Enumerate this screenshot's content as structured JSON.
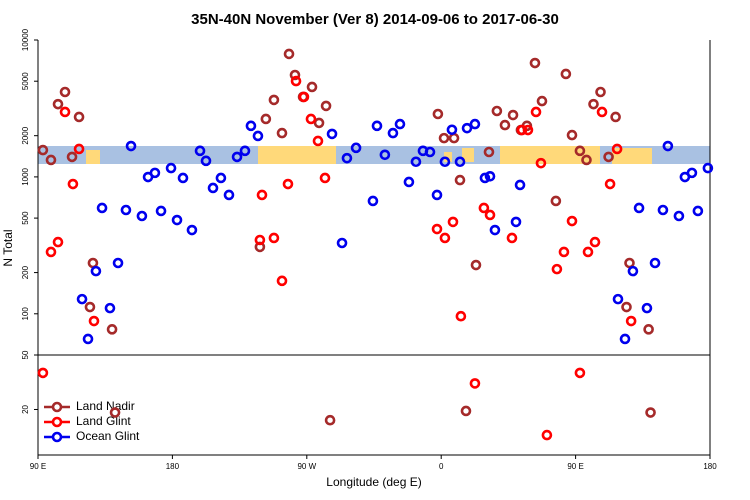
{
  "chart_data": {
    "type": "scatter",
    "title": "35N-40N November (Ver 8)   2014-09-06 to 2017-06-30",
    "x_label": "Longitude (deg E)",
    "y_label": "N Total",
    "log_y": true,
    "y_break": 50,
    "xlim": [
      90,
      540
    ],
    "xticks": [
      {
        "value": 90,
        "label": "90 E"
      },
      180,
      {
        "value": 270,
        "label": "90 W"
      },
      {
        "value": 360,
        "label": "0"
      },
      {
        "value": 450,
        "label": "90 E"
      },
      {
        "value": 540,
        "label": "180"
      }
    ],
    "ylim": [
      9.3,
      10000
    ],
    "yticks": [
      20,
      50,
      100,
      200,
      500,
      1000,
      2000,
      5000,
      10000
    ],
    "legend": "bottom-left",
    "series": [
      {
        "name": "Land Nadir",
        "color": "#a52a2a",
        "x": [
          93.3,
          98.7,
          103.4,
          108.1,
          112.8,
          117.5,
          124.8,
          126.8,
          139.6,
          141.6,
          238.6,
          242.6,
          248.0,
          253.4,
          258.1,
          262.1,
          267.5,
          273.5,
          278.2,
          282.9,
          285.6,
          357.8,
          361.9,
          368.6,
          372.6,
          376.6,
          383.3,
          392.0,
          397.3,
          402.7,
          408.1,
          413.4,
          417.4,
          422.8,
          427.5,
          436.8,
          443.5,
          447.6,
          452.9,
          457.3,
          462.0,
          466.7,
          472.1,
          476.8,
          484.1,
          486.1,
          498.9,
          500.2
        ],
        "values": [
          1570,
          1330,
          3400,
          4170,
          1400,
          2740,
          112,
          235,
          77,
          19,
          308,
          2650,
          3650,
          2090,
          7910,
          5550,
          3840,
          4540,
          2480,
          3300,
          16.7,
          2880,
          1920,
          1920,
          948,
          19.5,
          227,
          1520,
          3030,
          2390,
          2830,
          2200,
          2360,
          6790,
          3580,
          667,
          5650,
          2020,
          1550,
          1330,
          3400,
          4170,
          1400,
          2740,
          112,
          235,
          77,
          19
        ]
      },
      {
        "name": "Land Glint",
        "color": "#ff0000",
        "x": [
          93.3,
          98.7,
          103.4,
          108.1,
          113.4,
          117.5,
          127.5,
          238.6,
          240.0,
          248.0,
          253.4,
          257.4,
          262.8,
          268.1,
          272.8,
          277.5,
          282.2,
          357.2,
          362.5,
          367.9,
          373.2,
          382.6,
          388.6,
          392.7,
          407.4,
          414.1,
          418.1,
          423.5,
          426.8,
          430.8,
          437.5,
          442.2,
          447.6,
          452.9,
          458.3,
          463.0,
          467.7,
          473.1,
          477.8,
          487.2
        ],
        "values": [
          37,
          283,
          334,
          2980,
          887,
          1600,
          88.5,
          346,
          738,
          358,
          174,
          887,
          5010,
          3840,
          2650,
          1830,
          982,
          416,
          358,
          469,
          96,
          31,
          593,
          527,
          358,
          2200,
          2200,
          2980,
          1260,
          13,
          212,
          283,
          476,
          37,
          283,
          334,
          2980,
          887,
          1600,
          88.5
        ]
      },
      {
        "name": "Ocean Glint",
        "color": "#0000ee",
        "x": [
          119.5,
          123.5,
          128.8,
          132.9,
          138.2,
          143.6,
          148.9,
          152.3,
          159.6,
          163.7,
          168.3,
          172.4,
          179.1,
          183.1,
          187.1,
          193.1,
          198.5,
          202.5,
          207.2,
          212.5,
          217.9,
          223.3,
          228.6,
          232.6,
          237.3,
          286.9,
          293.6,
          296.9,
          303.0,
          314.3,
          317.0,
          322.3,
          327.7,
          332.4,
          338.4,
          343.1,
          347.8,
          352.5,
          357.2,
          362.5,
          367.2,
          372.6,
          377.3,
          382.6,
          389.3,
          392.7,
          396.0,
          410.1,
          412.8,
          478.4,
          483.1,
          488.4,
          492.5,
          497.8,
          503.2,
          508.5,
          511.8,
          519.2,
          523.2,
          527.9,
          531.9,
          538.6
        ],
        "values": [
          128,
          65.5,
          205,
          593,
          110,
          235,
          573,
          1680,
          518,
          998,
          1070,
          564,
          1160,
          484,
          982,
          409,
          1550,
          1310,
          830,
          982,
          738,
          1400,
          1550,
          2360,
          1990,
          2060,
          329,
          1370,
          1630,
          667,
          2360,
          1450,
          2090,
          2430,
          918,
          1290,
          1550,
          1520,
          738,
          1290,
          2210,
          1290,
          2270,
          2430,
          982,
          1010,
          409,
          469,
          873,
          128,
          65.5,
          205,
          593,
          110,
          235,
          573,
          1680,
          518,
          998,
          1070,
          564,
          1160
        ]
      }
    ]
  }
}
